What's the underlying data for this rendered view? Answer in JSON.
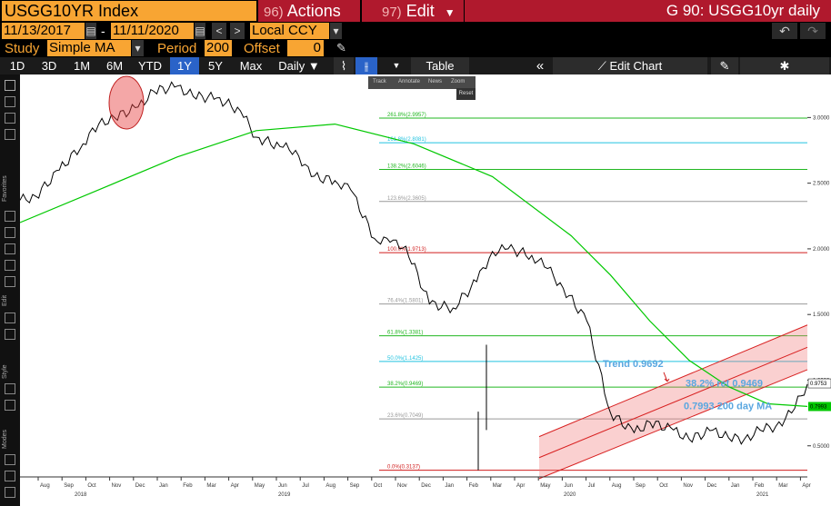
{
  "header": {
    "ticker": "USGG10YR Index",
    "actions": {
      "num": "96)",
      "label": "Actions"
    },
    "edit": {
      "num": "97)",
      "label": "Edit"
    },
    "title": "G 90: USGG10yr daily"
  },
  "dates": {
    "start": "11/13/2017",
    "end": "11/11/2020",
    "currency": "Local CCY"
  },
  "study": {
    "label": "Study",
    "value": "Simple MA",
    "period_label": "Period",
    "period": "200",
    "offset_label": "Offset",
    "offset": "0"
  },
  "toolbar": {
    "ranges": [
      "1D",
      "3D",
      "1M",
      "6M",
      "YTD",
      "1Y",
      "5Y",
      "Max"
    ],
    "active_range": "1Y",
    "frequency": "Daily",
    "table": "Table",
    "edit_chart": "Edit Chart"
  },
  "mini_toolbar": {
    "items": [
      "Track",
      "Annotate",
      "News",
      "Zoom"
    ],
    "reset": "Reset"
  },
  "side_labels": [
    "Favorites",
    "Edit",
    "Style",
    "Modes"
  ],
  "chart_data": {
    "type": "line",
    "title": "",
    "y_axis": {
      "ticks": [
        "3.0000",
        "2.5000",
        "2.0000",
        "1.5000",
        "1.0000",
        "0.5000"
      ],
      "range": [
        0.27,
        3.3
      ],
      "position": "right"
    },
    "x_axis": {
      "months": [
        "Aug",
        "Sep",
        "Oct",
        "Nov",
        "Dec",
        "Jan",
        "Feb",
        "Mar",
        "Apr",
        "May",
        "Jun",
        "Jul",
        "Aug",
        "Sep",
        "Oct",
        "Nov",
        "Dec",
        "Jan",
        "Feb",
        "Mar",
        "Apr",
        "May",
        "Jun",
        "Jul",
        "Aug",
        "Sep",
        "Oct",
        "Nov",
        "Dec",
        "Jan",
        "Feb",
        "Mar",
        "Apr"
      ],
      "years": [
        "2018",
        "2019",
        "2020",
        "2021"
      ]
    },
    "last_price_label": "0.9753",
    "ma_label": "0.7993",
    "fib_levels": [
      {
        "label": "261.8%(2.9957)",
        "value": 2.9957,
        "color": "#22b722"
      },
      {
        "label": "161.8%(2.8081)",
        "value": 2.8081,
        "color": "#22c3e0"
      },
      {
        "label": "138.2%(2.6046)",
        "value": 2.6046,
        "color": "#22b722"
      },
      {
        "label": "123.6%(2.3605)",
        "value": 2.3605,
        "color": "#999999"
      },
      {
        "label": "100.0%(1.9713)",
        "value": 1.9713,
        "color": "#d01c1c"
      },
      {
        "label": "76.4%(1.5801)",
        "value": 1.5801,
        "color": "#999999"
      },
      {
        "label": "61.8%(1.3381)",
        "value": 1.3381,
        "color": "#22b722"
      },
      {
        "label": "50.0%(1.1425)",
        "value": 1.1425,
        "color": "#22c3e0"
      },
      {
        "label": "38.2%(0.9469)",
        "value": 0.9469,
        "color": "#22b722"
      },
      {
        "label": "23.6%(0.7049)",
        "value": 0.7049,
        "color": "#999999"
      },
      {
        "label": "0.0%(0.3137)",
        "value": 0.3137,
        "color": "#d01c1c"
      }
    ],
    "annotations": {
      "trend": "Trend 0.9692",
      "retracement": "38.2% ret 0.9469",
      "ma": "0.7993 200 day MA"
    },
    "series": [
      {
        "name": "USGG10YR",
        "color": "#000000",
        "x": [
          0,
          0.02,
          0.05,
          0.08,
          0.1,
          0.12,
          0.15,
          0.17,
          0.2,
          0.22,
          0.25,
          0.28,
          0.3,
          0.33,
          0.35,
          0.37,
          0.4,
          0.42,
          0.45,
          0.47,
          0.49,
          0.52,
          0.55,
          0.58,
          0.6,
          0.62,
          0.65,
          0.67,
          0.69,
          0.72,
          0.75,
          0.78,
          0.8,
          0.83,
          0.85,
          0.88,
          0.9,
          0.92,
          0.94,
          0.96,
          0.98,
          1.0
        ],
        "values": [
          2.37,
          2.4,
          2.6,
          2.8,
          2.95,
          3.0,
          3.08,
          3.2,
          3.24,
          3.16,
          3.15,
          3.05,
          2.85,
          2.78,
          2.75,
          2.55,
          2.52,
          2.45,
          2.08,
          2.05,
          2.02,
          1.58,
          1.55,
          1.75,
          1.98,
          2.0,
          1.95,
          1.85,
          1.7,
          1.45,
          0.75,
          0.6,
          0.68,
          0.62,
          0.55,
          0.62,
          0.56,
          0.55,
          0.62,
          0.65,
          0.75,
          0.97
        ]
      },
      {
        "name": "200 day MA",
        "color": "#00c800",
        "x": [
          0,
          0.1,
          0.2,
          0.3,
          0.4,
          0.5,
          0.6,
          0.7,
          0.75,
          0.8,
          0.85,
          0.9,
          0.95,
          1.0
        ],
        "values": [
          2.2,
          2.45,
          2.7,
          2.9,
          2.95,
          2.8,
          2.55,
          2.1,
          1.8,
          1.45,
          1.15,
          0.95,
          0.82,
          0.8
        ]
      }
    ]
  }
}
